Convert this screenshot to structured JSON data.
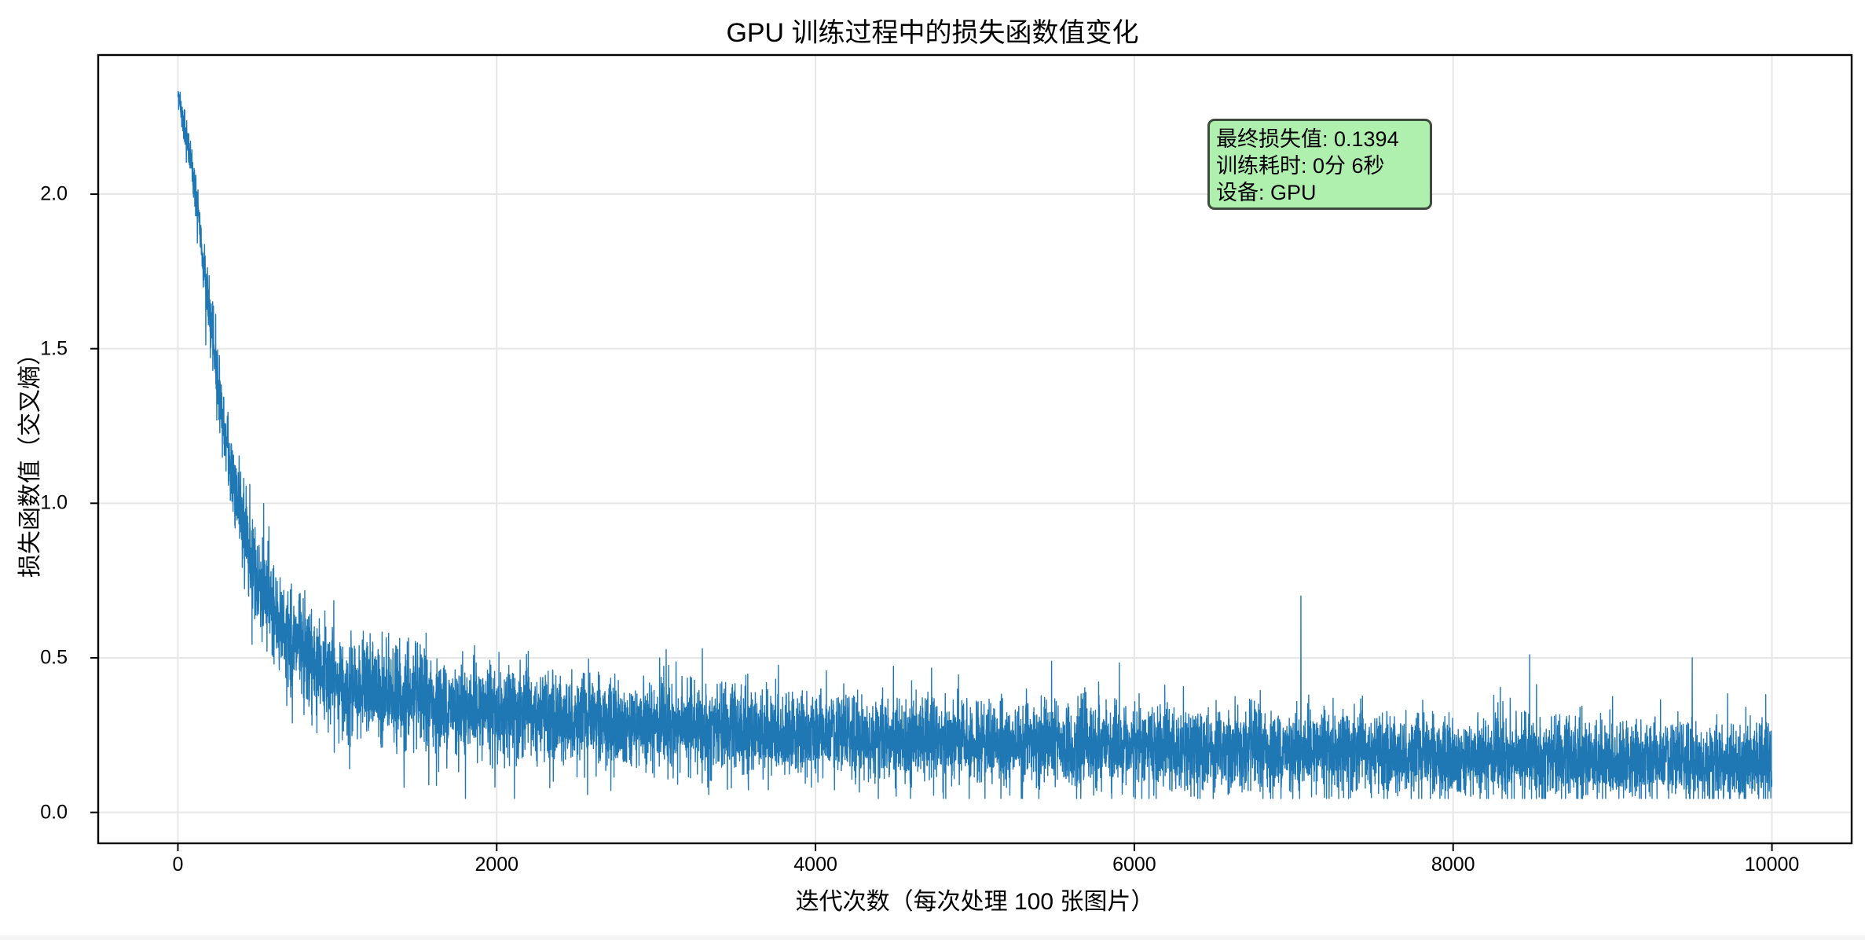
{
  "chart_data": {
    "type": "line",
    "title": "GPU 训练过程中的损失函数值变化",
    "xlabel": "迭代次数（每次处理 100 张图片）",
    "ylabel": "损失函数值（交叉熵）",
    "xlim": [
      -500,
      10500
    ],
    "ylim": [
      -0.1,
      2.45
    ],
    "x_ticks": [
      0,
      2000,
      4000,
      6000,
      8000,
      10000
    ],
    "x_tick_labels": [
      "0",
      "2000",
      "4000",
      "6000",
      "8000",
      "10000"
    ],
    "y_ticks": [
      0.0,
      0.5,
      1.0,
      1.5,
      2.0
    ],
    "y_tick_labels": [
      "0.0",
      "0.5",
      "1.0",
      "1.5",
      "2.0"
    ],
    "grid": true,
    "legend": null,
    "series": [
      {
        "name": "loss",
        "color": "#1f77b4",
        "n_points": 10000,
        "description": "Noisy per-iteration training loss; sampled approximate trend values below",
        "x": [
          0,
          100,
          200,
          300,
          400,
          500,
          700,
          1000,
          1500,
          2000,
          3000,
          4000,
          5000,
          6000,
          7000,
          8000,
          9000,
          10000
        ],
        "values": [
          2.33,
          2.05,
          1.6,
          1.2,
          0.95,
          0.75,
          0.55,
          0.42,
          0.36,
          0.32,
          0.28,
          0.25,
          0.23,
          0.21,
          0.2,
          0.18,
          0.17,
          0.16
        ],
        "noise_band": [
          {
            "x": 1000,
            "low": 0.22,
            "high": 0.6
          },
          {
            "x": 2000,
            "low": 0.15,
            "high": 0.55
          },
          {
            "x": 5000,
            "low": 0.1,
            "high": 0.45
          },
          {
            "x": 10000,
            "low": 0.06,
            "high": 0.38
          }
        ],
        "notable_spikes": [
          {
            "x": 7045,
            "y": 0.7
          },
          {
            "x": 8480,
            "y": 0.51
          },
          {
            "x": 9500,
            "y": 0.5
          }
        ]
      }
    ],
    "annotation": {
      "lines": [
        "最终损失值: 0.1394",
        "训练耗时: 0分 6秒",
        "设备: GPU"
      ],
      "box_color": "#aff0ae",
      "position": "upper-right-inner"
    }
  },
  "annotation": {
    "final_loss": "最终损失值: 0.1394",
    "train_time": "训练耗时: 0分 6秒",
    "device": "设备: GPU"
  },
  "colors": {
    "line": "#1f77b4",
    "grid": "#e6e6e6",
    "axes": "#000000",
    "annotation_bg": "#aff0ae",
    "annotation_border": "#3d4a3d"
  }
}
